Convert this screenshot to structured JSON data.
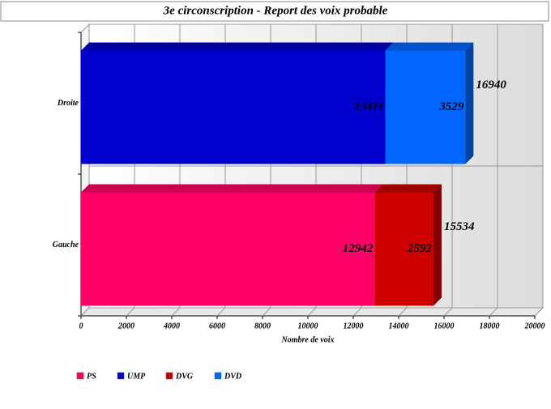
{
  "chart_data": {
    "type": "stacked-bar-3d",
    "title": "3e circonscription - Report des voix probable",
    "x_label": "Nombre de voix",
    "categories": [
      "Droite",
      "Gauche"
    ],
    "series": [
      {
        "name": "PS",
        "color": "#ff0066",
        "values": [
          null,
          12942
        ]
      },
      {
        "name": "UMP",
        "color": "#0000cc",
        "values": [
          13411,
          null
        ]
      },
      {
        "name": "DVG",
        "color": "#cc0000",
        "values": [
          null,
          2592
        ]
      },
      {
        "name": "DVD",
        "color": "#0066ff",
        "values": [
          3529,
          null
        ]
      }
    ],
    "totals": [
      16940,
      15534
    ],
    "xlim": [
      0,
      20000
    ],
    "xticks": [
      0,
      2000,
      4000,
      6000,
      8000,
      10000,
      12000,
      14000,
      16000,
      18000,
      20000
    ],
    "grid": true
  }
}
